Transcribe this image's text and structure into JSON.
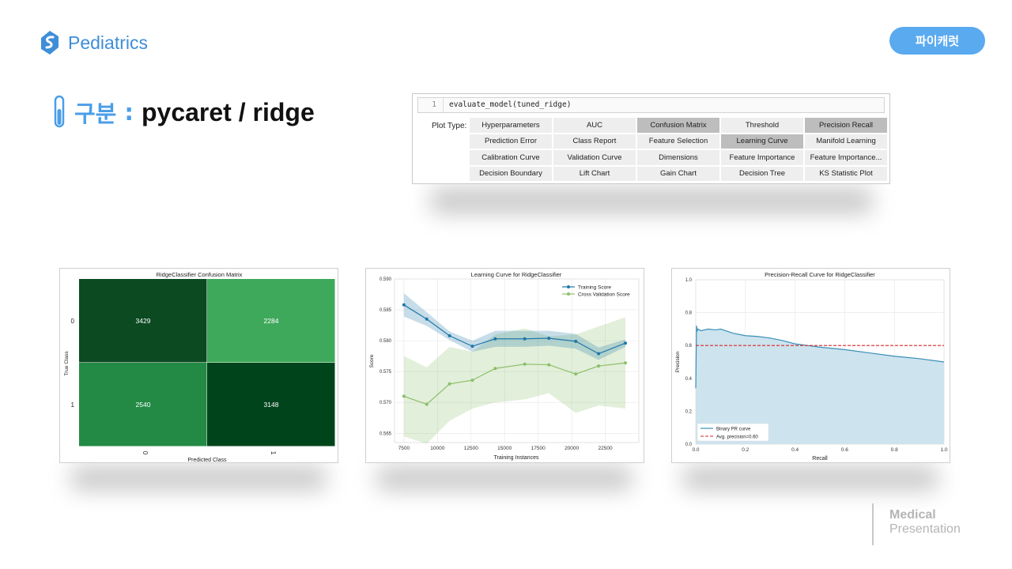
{
  "header": {
    "brand": "Pediatrics",
    "badge": "파이캐럿"
  },
  "title": {
    "label": "구분",
    "colon": ":",
    "value": "pycaret / ridge"
  },
  "code_panel": {
    "line_number": "1",
    "code": "evaluate_model(tuned_ridge)",
    "plot_type_label": "Plot Type:",
    "buttons": [
      {
        "label": "Hyperparameters",
        "selected": false
      },
      {
        "label": "AUC",
        "selected": false
      },
      {
        "label": "Confusion Matrix",
        "selected": true
      },
      {
        "label": "Threshold",
        "selected": false
      },
      {
        "label": "Precision Recall",
        "selected": true
      },
      {
        "label": "Prediction Error",
        "selected": false
      },
      {
        "label": "Class Report",
        "selected": false
      },
      {
        "label": "Feature Selection",
        "selected": false
      },
      {
        "label": "Learning Curve",
        "selected": true
      },
      {
        "label": "Manifold Learning",
        "selected": false
      },
      {
        "label": "Calibration Curve",
        "selected": false
      },
      {
        "label": "Validation Curve",
        "selected": false
      },
      {
        "label": "Dimensions",
        "selected": false
      },
      {
        "label": "Feature Importance",
        "selected": false
      },
      {
        "label": "Feature Importance...",
        "selected": false
      },
      {
        "label": "Decision Boundary",
        "selected": false
      },
      {
        "label": "Lift Chart",
        "selected": false
      },
      {
        "label": "Gain Chart",
        "selected": false
      },
      {
        "label": "Decision Tree",
        "selected": false
      },
      {
        "label": "KS Statistic Plot",
        "selected": false
      }
    ]
  },
  "chart_data": [
    {
      "type": "heatmap",
      "title": "RidgeClassifier Confusion Matrix",
      "xlabel": "Predicted Class",
      "ylabel": "True Class",
      "x_ticks": [
        "0",
        "1"
      ],
      "y_ticks": [
        "0",
        "1"
      ],
      "values": [
        [
          3429,
          2284
        ],
        [
          2540,
          3148
        ]
      ],
      "colors": [
        [
          "#0c4a22",
          "#3fa95b"
        ],
        [
          "#228a44",
          "#00441b"
        ]
      ]
    },
    {
      "type": "line",
      "title": "Learning Curve for RidgeClassifier",
      "xlabel": "Training Instances",
      "ylabel": "Score",
      "xlim": [
        6800,
        25000
      ],
      "ylim": [
        0.5635,
        0.59
      ],
      "x_ticks": [
        "7500",
        "10000",
        "12500",
        "15000",
        "17500",
        "20000",
        "22500"
      ],
      "y_ticks": [
        "0.590",
        "0.585",
        "0.580",
        "0.575",
        "0.570",
        "0.565"
      ],
      "x": [
        7500,
        9200,
        10900,
        12600,
        14300,
        16500,
        18300,
        20300,
        22000,
        24000
      ],
      "series": [
        {
          "name": "Training Score",
          "color": "#1f77a8",
          "values": [
            0.5858,
            0.5835,
            0.5808,
            0.5791,
            0.5803,
            0.5803,
            0.5804,
            0.5799,
            0.5779,
            0.5796
          ],
          "lower": [
            0.5839,
            0.5824,
            0.5801,
            0.5782,
            0.579,
            0.579,
            0.5792,
            0.5787,
            0.5769,
            0.579
          ],
          "upper": [
            0.5877,
            0.5846,
            0.5815,
            0.58,
            0.5816,
            0.5816,
            0.5816,
            0.5811,
            0.5789,
            0.5802
          ]
        },
        {
          "name": "Cross Validation Score",
          "color": "#8cbf6a",
          "values": [
            0.571,
            0.5697,
            0.573,
            0.5736,
            0.5755,
            0.5762,
            0.5761,
            0.5746,
            0.5759,
            0.5764
          ],
          "lower": [
            0.5645,
            0.5633,
            0.567,
            0.569,
            0.57,
            0.5705,
            0.5715,
            0.5683,
            0.5695,
            0.569
          ],
          "upper": [
            0.5775,
            0.5757,
            0.579,
            0.5782,
            0.581,
            0.582,
            0.5807,
            0.581,
            0.5823,
            0.5838
          ]
        }
      ],
      "legend": "top-right"
    },
    {
      "type": "area",
      "title": "Precision-Recall Curve for RidgeClassifier",
      "xlabel": "Recall",
      "ylabel": "Precision",
      "xlim": [
        0,
        1
      ],
      "ylim": [
        0,
        1
      ],
      "x_ticks": [
        "0.0",
        "0.2",
        "0.4",
        "0.6",
        "0.8",
        "1.0"
      ],
      "y_ticks": [
        "1.0",
        "0.8",
        "0.6",
        "0.4",
        "0.2",
        "0.0"
      ],
      "x": [
        0.0,
        0.003,
        0.006,
        0.01,
        0.02,
        0.05,
        0.08,
        0.1,
        0.12,
        0.15,
        0.2,
        0.25,
        0.3,
        0.35,
        0.4,
        0.45,
        0.5,
        0.6,
        0.7,
        0.8,
        0.9,
        1.0
      ],
      "values": [
        0.34,
        0.72,
        0.69,
        0.7,
        0.69,
        0.7,
        0.695,
        0.7,
        0.69,
        0.675,
        0.66,
        0.655,
        0.645,
        0.63,
        0.61,
        0.6,
        0.59,
        0.575,
        0.555,
        0.535,
        0.52,
        0.5
      ],
      "avg_precision": 0.6,
      "legend": [
        "Binary PR curve",
        "Avg. precision=0.60"
      ],
      "colors": {
        "curve": "#3a8fb7",
        "fill": "#cde3ee",
        "avg": "#d62728"
      }
    }
  ],
  "footer": {
    "line1": "Medical",
    "line2": "Presentation"
  }
}
